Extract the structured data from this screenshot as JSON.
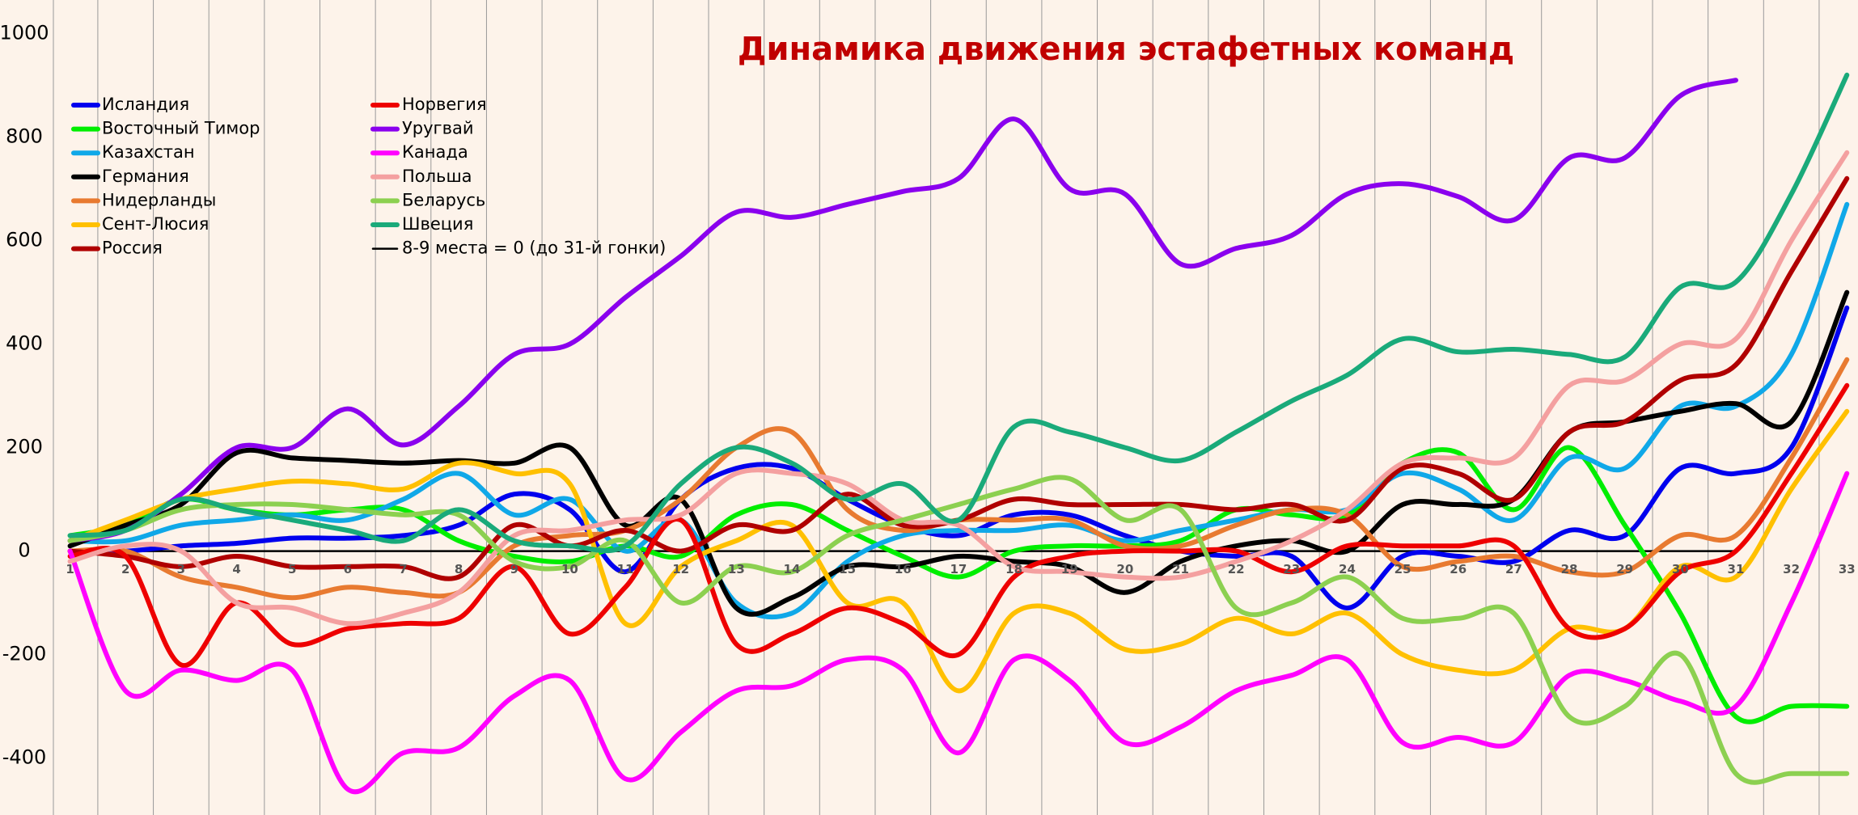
{
  "chart_data": {
    "type": "line",
    "title": "Динамика движения эстафетных команд",
    "x": [
      1,
      2,
      3,
      4,
      5,
      6,
      7,
      8,
      9,
      10,
      11,
      12,
      13,
      14,
      15,
      16,
      17,
      18,
      19,
      20,
      21,
      22,
      23,
      24,
      25,
      26,
      27,
      28,
      29,
      30,
      31,
      32,
      33
    ],
    "xlim": [
      0.7,
      33.2
    ],
    "xticks": [
      1,
      2,
      3,
      4,
      5,
      6,
      7,
      8,
      9,
      10,
      11,
      12,
      13,
      14,
      15,
      16,
      17,
      18,
      19,
      20,
      21,
      22,
      23,
      24,
      25,
      26,
      27,
      28,
      29,
      30,
      31,
      32,
      33
    ],
    "ylim": [
      -510,
      1065
    ],
    "yticks": [
      -400,
      -200,
      0,
      200,
      400,
      600,
      800,
      1000
    ],
    "grid": true,
    "smooth": true,
    "legend": "upper left",
    "series": [
      {
        "name": "Исландия",
        "color": "#0000ee",
        "values": [
          0,
          0,
          10,
          15,
          25,
          25,
          30,
          50,
          110,
          80,
          -40,
          100,
          160,
          160,
          100,
          50,
          30,
          70,
          70,
          30,
          0,
          -10,
          -10,
          -110,
          -10,
          -10,
          -20,
          40,
          30,
          160,
          150,
          200,
          470
        ]
      },
      {
        "name": "Восточный Тимор",
        "color": "#00ee00",
        "values": [
          30,
          50,
          100,
          80,
          70,
          80,
          80,
          20,
          -10,
          -20,
          10,
          -10,
          70,
          90,
          40,
          -10,
          -50,
          0,
          10,
          10,
          20,
          80,
          70,
          70,
          170,
          190,
          80,
          200,
          50,
          -120,
          -320,
          -300,
          -300
        ]
      },
      {
        "name": "Казахстан",
        "color": "#10a8e8",
        "values": [
          20,
          20,
          50,
          60,
          70,
          60,
          100,
          150,
          70,
          100,
          0,
          60,
          -100,
          -120,
          -20,
          30,
          40,
          40,
          50,
          20,
          40,
          60,
          80,
          80,
          150,
          120,
          60,
          180,
          160,
          280,
          280,
          380,
          670
        ]
      },
      {
        "name": "Германия",
        "color": "#000000",
        "values": [
          10,
          50,
          90,
          190,
          180,
          175,
          170,
          175,
          170,
          200,
          50,
          100,
          -110,
          -90,
          -30,
          -30,
          -10,
          -20,
          -30,
          -80,
          -20,
          10,
          20,
          0,
          90,
          90,
          100,
          230,
          250,
          270,
          285,
          250,
          500
        ]
      },
      {
        "name": "Нидерланды",
        "color": "#e87a30",
        "values": [
          0,
          0,
          -50,
          -70,
          -90,
          -70,
          -80,
          -80,
          10,
          30,
          40,
          100,
          200,
          230,
          80,
          40,
          60,
          60,
          60,
          10,
          10,
          50,
          80,
          70,
          -30,
          -20,
          -10,
          -40,
          -40,
          30,
          30,
          180,
          370
        ]
      },
      {
        "name": "Сент-Люсия",
        "color": "#ffc000",
        "values": [
          20,
          60,
          100,
          120,
          135,
          130,
          120,
          170,
          150,
          130,
          -140,
          -30,
          20,
          50,
          -100,
          -100,
          -270,
          -120,
          -120,
          -190,
          -180,
          -130,
          -160,
          -120,
          -200,
          -230,
          -230,
          -150,
          -150,
          -30,
          -50,
          120,
          270
        ]
      },
      {
        "name": "Россия",
        "color": "#b00000",
        "values": [
          0,
          -10,
          -30,
          -10,
          -30,
          -30,
          -30,
          -50,
          50,
          10,
          40,
          0,
          50,
          40,
          110,
          50,
          60,
          100,
          90,
          90,
          90,
          80,
          90,
          60,
          160,
          150,
          100,
          230,
          250,
          330,
          360,
          540,
          720
        ]
      },
      {
        "name": "Норвегия",
        "color": "#ee0000",
        "values": [
          -10,
          -10,
          -220,
          -100,
          -180,
          -150,
          -140,
          -130,
          -30,
          -160,
          -70,
          60,
          -180,
          -160,
          -110,
          -140,
          -200,
          -50,
          -10,
          0,
          0,
          0,
          -40,
          10,
          10,
          10,
          10,
          -150,
          -150,
          -40,
          0,
          150,
          320
        ]
      },
      {
        "name": "Уругвай",
        "color": "#8a00ee",
        "values": [
          20,
          40,
          110,
          200,
          200,
          275,
          205,
          280,
          380,
          400,
          490,
          570,
          655,
          645,
          670,
          695,
          720,
          835,
          700,
          690,
          555,
          585,
          610,
          690,
          710,
          685,
          640,
          760,
          760,
          880,
          910,
          null,
          null
        ]
      },
      {
        "name": "Канада",
        "color": "#ff00ff",
        "values": [
          0,
          -270,
          -230,
          -250,
          -230,
          -460,
          -390,
          -380,
          -280,
          -250,
          -440,
          -350,
          -270,
          -260,
          -210,
          -230,
          -390,
          -210,
          -250,
          -370,
          -340,
          -270,
          -240,
          -210,
          -370,
          -360,
          -370,
          -240,
          -250,
          -290,
          -300,
          -100,
          150
        ]
      },
      {
        "name": "Польша",
        "color": "#f4a0a0",
        "values": [
          -20,
          10,
          0,
          -100,
          -110,
          -140,
          -120,
          -80,
          30,
          40,
          60,
          70,
          150,
          150,
          130,
          60,
          50,
          -30,
          -40,
          -50,
          -50,
          -20,
          20,
          80,
          170,
          180,
          180,
          320,
          330,
          400,
          410,
          600,
          770
        ]
      },
      {
        "name": "Беларусь",
        "color": "#8cd050",
        "values": [
          20,
          40,
          80,
          90,
          90,
          80,
          70,
          70,
          -20,
          -30,
          20,
          -100,
          -30,
          -40,
          30,
          60,
          90,
          120,
          140,
          60,
          80,
          -110,
          -100,
          -50,
          -130,
          -130,
          -120,
          -320,
          -300,
          -200,
          -430,
          -430,
          -430
        ]
      },
      {
        "name": "Швеция",
        "color": "#1aaa7a",
        "values": [
          30,
          40,
          100,
          80,
          60,
          40,
          20,
          80,
          20,
          10,
          10,
          130,
          200,
          170,
          100,
          130,
          60,
          240,
          230,
          200,
          175,
          230,
          290,
          340,
          410,
          385,
          390,
          380,
          375,
          510,
          520,
          690,
          920
        ]
      }
    ],
    "reference_line": {
      "name": "8-9 места = 0 (до 31-й гонки)",
      "color": "#000000",
      "y": 0,
      "x_end": 31
    }
  }
}
